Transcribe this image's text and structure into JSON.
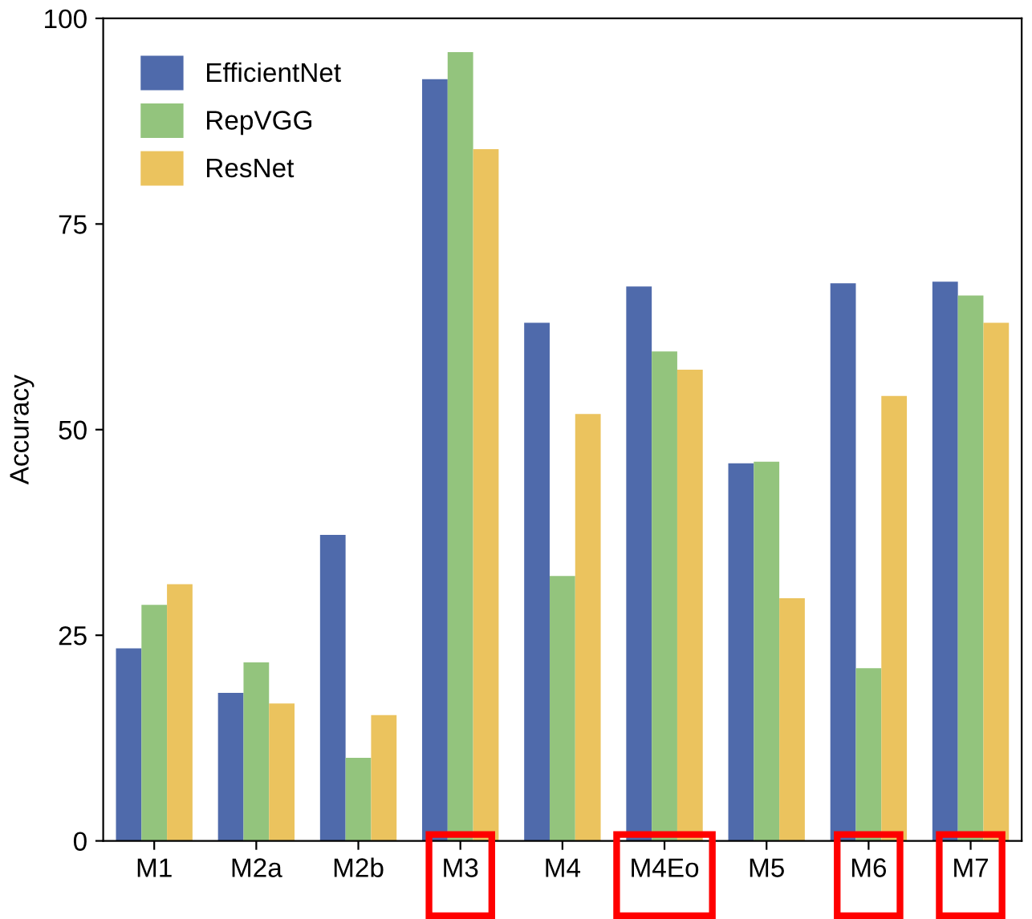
{
  "chart_data": {
    "type": "bar",
    "ylabel": "Accuracy",
    "categories": [
      "M1",
      "M2a",
      "M2b",
      "M3",
      "M4",
      "M4Eo",
      "M5",
      "M6",
      "M7"
    ],
    "series": [
      {
        "name": "EfficientNet",
        "color": "#4f6aab",
        "values": [
          23.4,
          18.0,
          37.2,
          92.6,
          63.0,
          67.4,
          45.9,
          67.8,
          68.0
        ]
      },
      {
        "name": "RepVGG",
        "color": "#93c47d",
        "values": [
          28.7,
          21.7,
          10.1,
          95.9,
          32.2,
          59.5,
          46.1,
          21.0,
          66.3
        ]
      },
      {
        "name": "ResNet",
        "color": "#ebc35e",
        "values": [
          31.2,
          16.7,
          15.3,
          84.1,
          51.9,
          57.3,
          29.5,
          54.1,
          63.0
        ]
      }
    ],
    "ylim": [
      0,
      100
    ],
    "yticks": [
      0,
      25,
      50,
      75,
      100
    ],
    "grid": false,
    "legend": "top left"
  }
}
